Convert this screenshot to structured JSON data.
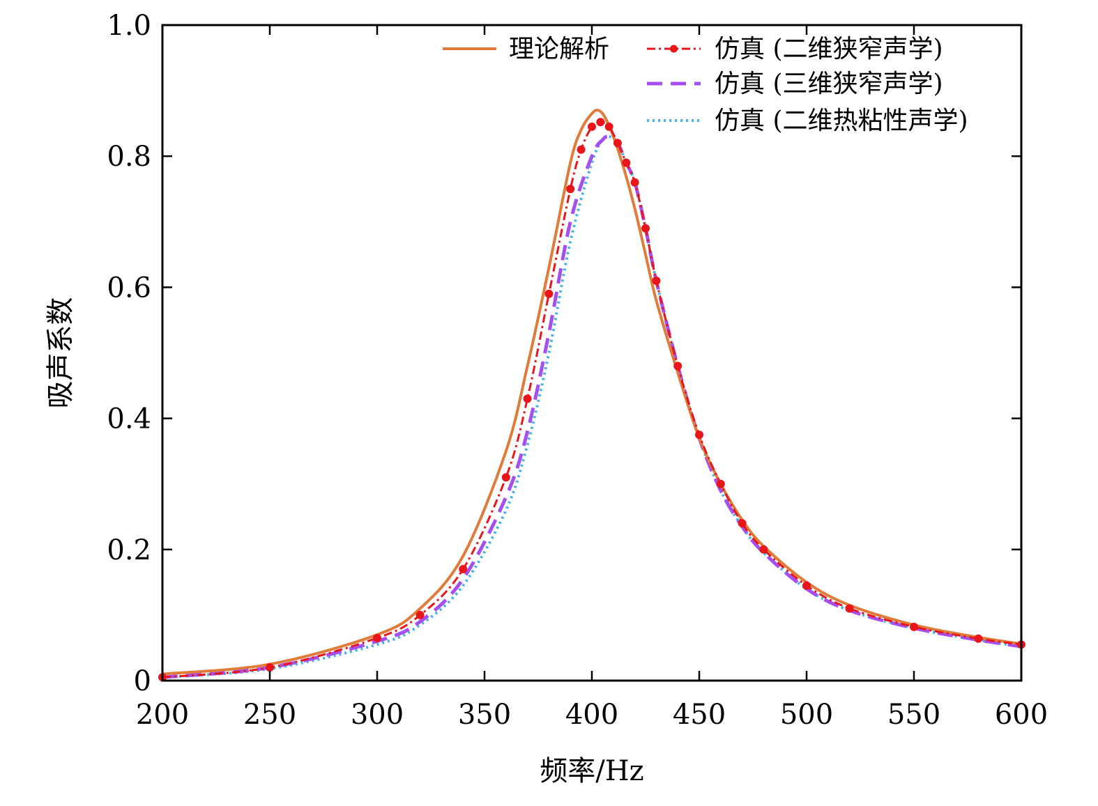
{
  "chart_data": {
    "type": "line",
    "xlabel": "频率/Hz",
    "ylabel": "吸声系数",
    "xlim": [
      200,
      600
    ],
    "ylim": [
      0,
      1.0
    ],
    "xticks": [
      200,
      250,
      300,
      350,
      400,
      450,
      500,
      550,
      600
    ],
    "xtick_labels": [
      "200",
      "250",
      "300",
      "350",
      "400",
      "450",
      "500",
      "550",
      "600"
    ],
    "yticks": [
      0,
      0.2,
      0.4,
      0.6,
      0.8,
      1.0
    ],
    "ytick_labels": [
      "0",
      "0.2",
      "0.4",
      "0.6",
      "0.8",
      "1.0"
    ],
    "grid": false,
    "legend_position": "top-right",
    "series": [
      {
        "name": "理论解析",
        "color": "#e07b39",
        "style": "solid",
        "x": [
          200,
          250,
          300,
          320,
          340,
          360,
          370,
          380,
          390,
          395,
          400,
          403,
          406,
          410,
          415,
          420,
          425,
          430,
          440,
          450,
          460,
          470,
          480,
          500,
          520,
          550,
          580,
          600
        ],
        "y": [
          0.01,
          0.025,
          0.07,
          0.11,
          0.19,
          0.35,
          0.48,
          0.63,
          0.79,
          0.84,
          0.865,
          0.87,
          0.86,
          0.83,
          0.78,
          0.72,
          0.65,
          0.58,
          0.47,
          0.37,
          0.3,
          0.245,
          0.205,
          0.15,
          0.115,
          0.085,
          0.066,
          0.056
        ]
      },
      {
        "name": "仿真 (二维狭窄声学)",
        "color": "#e8161b",
        "style": "dashdot-markers",
        "x": [
          200,
          250,
          300,
          320,
          340,
          360,
          370,
          380,
          390,
          395,
          400,
          404,
          408,
          412,
          416,
          420,
          425,
          430,
          440,
          450,
          460,
          470,
          480,
          500,
          520,
          550,
          580,
          600
        ],
        "y": [
          0.005,
          0.02,
          0.065,
          0.1,
          0.17,
          0.31,
          0.43,
          0.59,
          0.75,
          0.81,
          0.845,
          0.852,
          0.845,
          0.82,
          0.79,
          0.76,
          0.69,
          0.61,
          0.48,
          0.375,
          0.3,
          0.24,
          0.2,
          0.145,
          0.11,
          0.082,
          0.064,
          0.055
        ]
      },
      {
        "name": "仿真 (三维狭窄声学)",
        "color": "#a64ff0",
        "style": "dashed",
        "x": [
          200,
          250,
          300,
          320,
          340,
          360,
          370,
          380,
          390,
          400,
          405,
          408,
          412,
          416,
          420,
          425,
          430,
          440,
          450,
          460,
          470,
          480,
          500,
          520,
          550,
          580,
          600
        ],
        "y": [
          0.005,
          0.02,
          0.06,
          0.09,
          0.155,
          0.28,
          0.38,
          0.53,
          0.7,
          0.8,
          0.825,
          0.83,
          0.82,
          0.79,
          0.76,
          0.69,
          0.61,
          0.48,
          0.37,
          0.29,
          0.235,
          0.195,
          0.14,
          0.107,
          0.08,
          0.062,
          0.052
        ]
      },
      {
        "name": "仿真 (二维热粘性声学)",
        "color": "#45b3e6",
        "style": "dotted",
        "x": [
          200,
          250,
          300,
          320,
          340,
          360,
          370,
          380,
          390,
          400,
          405,
          408,
          412,
          416,
          420,
          425,
          430,
          440,
          450,
          460,
          470,
          480,
          500,
          520,
          550,
          580,
          600
        ],
        "y": [
          0.005,
          0.018,
          0.055,
          0.085,
          0.145,
          0.26,
          0.36,
          0.5,
          0.67,
          0.79,
          0.825,
          0.83,
          0.82,
          0.79,
          0.76,
          0.69,
          0.61,
          0.48,
          0.37,
          0.29,
          0.235,
          0.195,
          0.14,
          0.107,
          0.08,
          0.062,
          0.052
        ]
      }
    ]
  }
}
